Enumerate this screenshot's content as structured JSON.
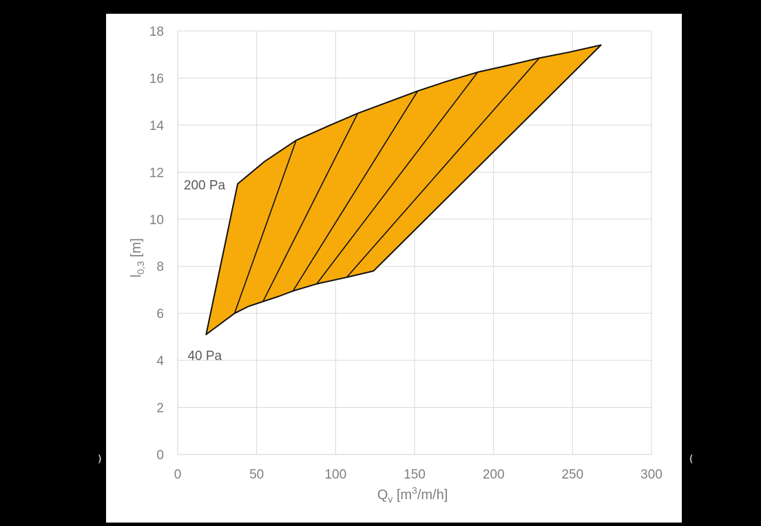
{
  "chart_data": {
    "type": "area",
    "xlabel": {
      "main": "Q",
      "sub": "v",
      "unit_pre": " [m",
      "sup": "3",
      "unit_post": "/m/h]"
    },
    "ylabel": {
      "main": "l",
      "sub": "0,3",
      "unit": " [m]"
    },
    "xlim": [
      0,
      300
    ],
    "ylim": [
      0,
      18
    ],
    "x_ticks": [
      0,
      50,
      100,
      150,
      200,
      250,
      300
    ],
    "y_ticks": [
      0,
      2,
      4,
      6,
      8,
      10,
      12,
      14,
      16,
      18
    ],
    "grid": true,
    "legend": "none",
    "colors": {
      "fill": "#f7ab0a",
      "edge": "#111111",
      "grid": "#d9d9d9",
      "text": "#7f7f7f"
    },
    "annotations": [
      {
        "text": "200 Pa",
        "x": 38,
        "y": 11.5
      },
      {
        "text": "40 Pa",
        "x": 18,
        "y": 5.1
      }
    ],
    "upper_boundary": [
      [
        38,
        11.5
      ],
      [
        55,
        12.45
      ],
      [
        75,
        13.35
      ],
      [
        95,
        13.95
      ],
      [
        114,
        14.5
      ],
      [
        132,
        14.95
      ],
      [
        152,
        15.45
      ],
      [
        170,
        15.85
      ],
      [
        190,
        16.25
      ],
      [
        210,
        16.55
      ],
      [
        229,
        16.85
      ],
      [
        248,
        17.1
      ],
      [
        268,
        17.4
      ]
    ],
    "lower_boundary": [
      [
        18,
        5.1
      ],
      [
        36,
        6.0
      ],
      [
        45,
        6.3
      ],
      [
        54,
        6.5
      ],
      [
        64,
        6.72
      ],
      [
        73,
        6.95
      ],
      [
        88,
        7.25
      ],
      [
        107,
        7.53
      ],
      [
        124,
        7.8
      ]
    ],
    "isolines": [
      {
        "from": [
          36,
          6.0
        ],
        "to": [
          75,
          13.35
        ]
      },
      {
        "from": [
          54,
          6.5
        ],
        "to": [
          114,
          14.5
        ]
      },
      {
        "from": [
          73,
          6.95
        ],
        "to": [
          152,
          15.45
        ]
      },
      {
        "from": [
          88,
          7.25
        ],
        "to": [
          190,
          16.25
        ]
      },
      {
        "from": [
          107,
          7.53
        ],
        "to": [
          229,
          16.85
        ]
      }
    ],
    "edge_marks": {
      "left": ")",
      "right": "("
    }
  }
}
